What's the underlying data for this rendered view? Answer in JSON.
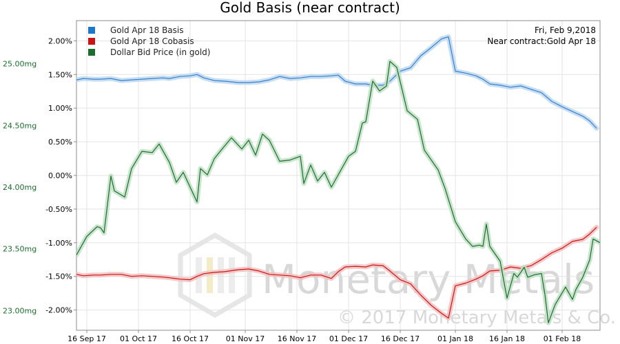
{
  "chart_data": {
    "type": "line",
    "title": "Gold Basis (near contract)",
    "date_label": "Fri, Feb 9,2018",
    "contract_label": "Near contract:Gold Apr 18",
    "watermark": {
      "brand": "Monetary Metals",
      "copyright": "© 2017 Monetary Metals & Co."
    },
    "legend_placement": "top-left",
    "grid": true,
    "x_range": [
      "2017-09-13",
      "2018-02-12"
    ],
    "x_ticks": [
      {
        "date": "2017-09-16",
        "label": "16 Sep 17"
      },
      {
        "date": "2017-10-01",
        "label": "01 Oct 17"
      },
      {
        "date": "2017-10-16",
        "label": "16 Oct 17"
      },
      {
        "date": "2017-11-01",
        "label": "01 Nov 17"
      },
      {
        "date": "2017-11-16",
        "label": "16 Nov 17"
      },
      {
        "date": "2017-12-01",
        "label": "01 Dec 17"
      },
      {
        "date": "2017-12-16",
        "label": "16 Dec 17"
      },
      {
        "date": "2018-01-01",
        "label": "01 Jan 18"
      },
      {
        "date": "2018-01-16",
        "label": "16 Jan 18"
      },
      {
        "date": "2018-02-01",
        "label": "01 Feb 18"
      }
    ],
    "y_left": {
      "range": [
        -2.3,
        2.3
      ],
      "ticks": [
        2.0,
        1.5,
        1.0,
        0.5,
        0.0,
        -0.5,
        -1.0,
        -1.5,
        -2.0
      ],
      "tick_labels": [
        "2.00%",
        "1.50%",
        "1.00%",
        "0.50%",
        "0.00%",
        "-0.50%",
        "-1.00%",
        "-1.50%",
        "-2.00%"
      ]
    },
    "y_right": {
      "range": [
        22.84,
        25.35
      ],
      "ticks": [
        25.0,
        24.5,
        24.0,
        23.5,
        23.0
      ],
      "tick_labels": [
        "25.00mg",
        "24.50mg",
        "24.00mg",
        "23.50mg",
        "23.00mg"
      ]
    },
    "series": [
      {
        "name": "Gold Apr 18 Basis",
        "color": "#3a7fc8",
        "glow": "#bcd8f2",
        "axis": "left",
        "points": [
          [
            "2017-09-13",
            1.42
          ],
          [
            "2017-09-15",
            1.44
          ],
          [
            "2017-09-18",
            1.43
          ],
          [
            "2017-09-20",
            1.43
          ],
          [
            "2017-09-23",
            1.44
          ],
          [
            "2017-09-26",
            1.41
          ],
          [
            "2017-09-29",
            1.42
          ],
          [
            "2017-10-02",
            1.43
          ],
          [
            "2017-10-05",
            1.44
          ],
          [
            "2017-10-08",
            1.45
          ],
          [
            "2017-10-10",
            1.44
          ],
          [
            "2017-10-13",
            1.47
          ],
          [
            "2017-10-16",
            1.48
          ],
          [
            "2017-10-18",
            1.5
          ],
          [
            "2017-10-20",
            1.45
          ],
          [
            "2017-10-23",
            1.41
          ],
          [
            "2017-10-26",
            1.4
          ],
          [
            "2017-10-30",
            1.38
          ],
          [
            "2017-11-02",
            1.38
          ],
          [
            "2017-11-05",
            1.39
          ],
          [
            "2017-11-08",
            1.42
          ],
          [
            "2017-11-11",
            1.47
          ],
          [
            "2017-11-14",
            1.44
          ],
          [
            "2017-11-17",
            1.45
          ],
          [
            "2017-11-20",
            1.47
          ],
          [
            "2017-11-23",
            1.47
          ],
          [
            "2017-11-26",
            1.48
          ],
          [
            "2017-11-28",
            1.49
          ],
          [
            "2017-11-30",
            1.4
          ],
          [
            "2017-12-03",
            1.36
          ],
          [
            "2017-12-06",
            1.36
          ],
          [
            "2017-12-08",
            1.34
          ],
          [
            "2017-12-11",
            1.34
          ],
          [
            "2017-12-13",
            1.4
          ],
          [
            "2017-12-16",
            1.55
          ],
          [
            "2017-12-19",
            1.6
          ],
          [
            "2017-12-22",
            1.78
          ],
          [
            "2017-12-25",
            1.9
          ],
          [
            "2017-12-28",
            2.03
          ],
          [
            "2017-12-30",
            2.06
          ],
          [
            "2018-01-01",
            1.55
          ],
          [
            "2018-01-04",
            1.52
          ],
          [
            "2018-01-07",
            1.48
          ],
          [
            "2018-01-09",
            1.43
          ],
          [
            "2018-01-11",
            1.36
          ],
          [
            "2018-01-14",
            1.34
          ],
          [
            "2018-01-17",
            1.31
          ],
          [
            "2018-01-20",
            1.33
          ],
          [
            "2018-01-23",
            1.28
          ],
          [
            "2018-01-26",
            1.23
          ],
          [
            "2018-01-29",
            1.1
          ],
          [
            "2018-02-01",
            1.02
          ],
          [
            "2018-02-04",
            0.95
          ],
          [
            "2018-02-07",
            0.88
          ],
          [
            "2018-02-09",
            0.81
          ],
          [
            "2018-02-11",
            0.7
          ]
        ]
      },
      {
        "name": "Gold Apr 18 Cobasis",
        "color": "#c81414",
        "glow": "#f2c0c0",
        "axis": "left",
        "points": [
          [
            "2017-09-13",
            -1.47
          ],
          [
            "2017-09-15",
            -1.49
          ],
          [
            "2017-09-18",
            -1.48
          ],
          [
            "2017-09-20",
            -1.48
          ],
          [
            "2017-09-23",
            -1.47
          ],
          [
            "2017-09-26",
            -1.47
          ],
          [
            "2017-09-29",
            -1.5
          ],
          [
            "2017-10-02",
            -1.49
          ],
          [
            "2017-10-05",
            -1.5
          ],
          [
            "2017-10-08",
            -1.51
          ],
          [
            "2017-10-10",
            -1.52
          ],
          [
            "2017-10-13",
            -1.54
          ],
          [
            "2017-10-16",
            -1.55
          ],
          [
            "2017-10-18",
            -1.5
          ],
          [
            "2017-10-20",
            -1.46
          ],
          [
            "2017-10-23",
            -1.44
          ],
          [
            "2017-10-26",
            -1.43
          ],
          [
            "2017-10-30",
            -1.4
          ],
          [
            "2017-11-02",
            -1.39
          ],
          [
            "2017-11-05",
            -1.42
          ],
          [
            "2017-11-08",
            -1.47
          ],
          [
            "2017-11-11",
            -1.48
          ],
          [
            "2017-11-14",
            -1.49
          ],
          [
            "2017-11-17",
            -1.52
          ],
          [
            "2017-11-20",
            -1.48
          ],
          [
            "2017-11-23",
            -1.48
          ],
          [
            "2017-11-26",
            -1.53
          ],
          [
            "2017-11-28",
            -1.43
          ],
          [
            "2017-11-30",
            -1.36
          ],
          [
            "2017-12-03",
            -1.35
          ],
          [
            "2017-12-06",
            -1.36
          ],
          [
            "2017-12-08",
            -1.33
          ],
          [
            "2017-12-11",
            -1.34
          ],
          [
            "2017-12-13",
            -1.42
          ],
          [
            "2017-12-16",
            -1.55
          ],
          [
            "2017-12-19",
            -1.61
          ],
          [
            "2017-12-22",
            -1.78
          ],
          [
            "2017-12-25",
            -1.93
          ],
          [
            "2017-12-28",
            -2.05
          ],
          [
            "2017-12-30",
            -2.12
          ],
          [
            "2018-01-01",
            -1.64
          ],
          [
            "2018-01-04",
            -1.6
          ],
          [
            "2018-01-07",
            -1.54
          ],
          [
            "2018-01-09",
            -1.49
          ],
          [
            "2018-01-11",
            -1.42
          ],
          [
            "2018-01-14",
            -1.41
          ],
          [
            "2018-01-17",
            -1.36
          ],
          [
            "2018-01-20",
            -1.38
          ],
          [
            "2018-01-23",
            -1.34
          ],
          [
            "2018-01-26",
            -1.25
          ],
          [
            "2018-01-29",
            -1.15
          ],
          [
            "2018-02-01",
            -1.08
          ],
          [
            "2018-02-04",
            -0.98
          ],
          [
            "2018-02-07",
            -0.95
          ],
          [
            "2018-02-09",
            -0.87
          ],
          [
            "2018-02-11",
            -0.77
          ]
        ]
      },
      {
        "name": "Dollar Bid Price (in gold)",
        "color": "#1e6b2e",
        "glow": "#bfe0c4",
        "axis": "right",
        "points": [
          [
            "2017-09-13",
            23.45
          ],
          [
            "2017-09-16",
            23.6
          ],
          [
            "2017-09-19",
            23.68
          ],
          [
            "2017-09-20",
            23.67
          ],
          [
            "2017-09-21",
            23.63
          ],
          [
            "2017-09-23",
            24.09
          ],
          [
            "2017-09-24",
            23.97
          ],
          [
            "2017-09-27",
            23.92
          ],
          [
            "2017-09-29",
            24.15
          ],
          [
            "2017-10-02",
            24.29
          ],
          [
            "2017-10-05",
            24.28
          ],
          [
            "2017-10-07",
            24.35
          ],
          [
            "2017-10-10",
            24.2
          ],
          [
            "2017-10-12",
            24.04
          ],
          [
            "2017-10-14",
            24.12
          ],
          [
            "2017-10-18",
            23.88
          ],
          [
            "2017-10-19",
            24.15
          ],
          [
            "2017-10-21",
            24.1
          ],
          [
            "2017-10-23",
            24.23
          ],
          [
            "2017-10-25",
            24.3
          ],
          [
            "2017-10-28",
            24.4
          ],
          [
            "2017-10-31",
            24.31
          ],
          [
            "2017-11-02",
            24.38
          ],
          [
            "2017-11-04",
            24.26
          ],
          [
            "2017-11-06",
            24.43
          ],
          [
            "2017-11-08",
            24.38
          ],
          [
            "2017-11-11",
            24.21
          ],
          [
            "2017-11-14",
            24.22
          ],
          [
            "2017-11-17",
            24.25
          ],
          [
            "2017-11-18",
            24.03
          ],
          [
            "2017-11-20",
            24.18
          ],
          [
            "2017-11-22",
            24.05
          ],
          [
            "2017-11-24",
            24.12
          ],
          [
            "2017-11-26",
            24.0
          ],
          [
            "2017-11-28",
            24.1
          ],
          [
            "2017-12-01",
            24.25
          ],
          [
            "2017-12-03",
            24.29
          ],
          [
            "2017-12-05",
            24.52
          ],
          [
            "2017-12-06",
            24.53
          ],
          [
            "2017-12-08",
            24.86
          ],
          [
            "2017-12-10",
            24.78
          ],
          [
            "2017-12-12",
            24.82
          ],
          [
            "2017-12-13",
            25.02
          ],
          [
            "2017-12-15",
            24.97
          ],
          [
            "2017-12-18",
            24.62
          ],
          [
            "2017-12-21",
            24.55
          ],
          [
            "2017-12-23",
            24.3
          ],
          [
            "2017-12-27",
            24.14
          ],
          [
            "2017-12-29",
            23.99
          ],
          [
            "2018-01-01",
            23.72
          ],
          [
            "2018-01-04",
            23.58
          ],
          [
            "2018-01-06",
            23.52
          ],
          [
            "2018-01-08",
            23.53
          ],
          [
            "2018-01-09",
            23.52
          ],
          [
            "2018-01-10",
            23.7
          ],
          [
            "2018-01-11",
            23.52
          ],
          [
            "2018-01-14",
            23.4
          ],
          [
            "2018-01-16",
            23.1
          ],
          [
            "2018-01-18",
            23.3
          ],
          [
            "2018-01-19",
            23.27
          ],
          [
            "2018-01-21",
            23.35
          ],
          [
            "2018-01-22",
            23.27
          ],
          [
            "2018-01-24",
            23.29
          ],
          [
            "2018-01-26",
            23.3
          ],
          [
            "2018-01-27",
            23.13
          ],
          [
            "2018-01-28",
            22.9
          ],
          [
            "2018-01-30",
            23.05
          ],
          [
            "2018-02-02",
            23.19
          ],
          [
            "2018-02-04",
            23.09
          ],
          [
            "2018-02-05",
            23.17
          ],
          [
            "2018-02-07",
            23.27
          ],
          [
            "2018-02-09",
            23.41
          ],
          [
            "2018-02-10",
            23.58
          ],
          [
            "2018-02-12",
            23.55
          ]
        ]
      }
    ]
  }
}
